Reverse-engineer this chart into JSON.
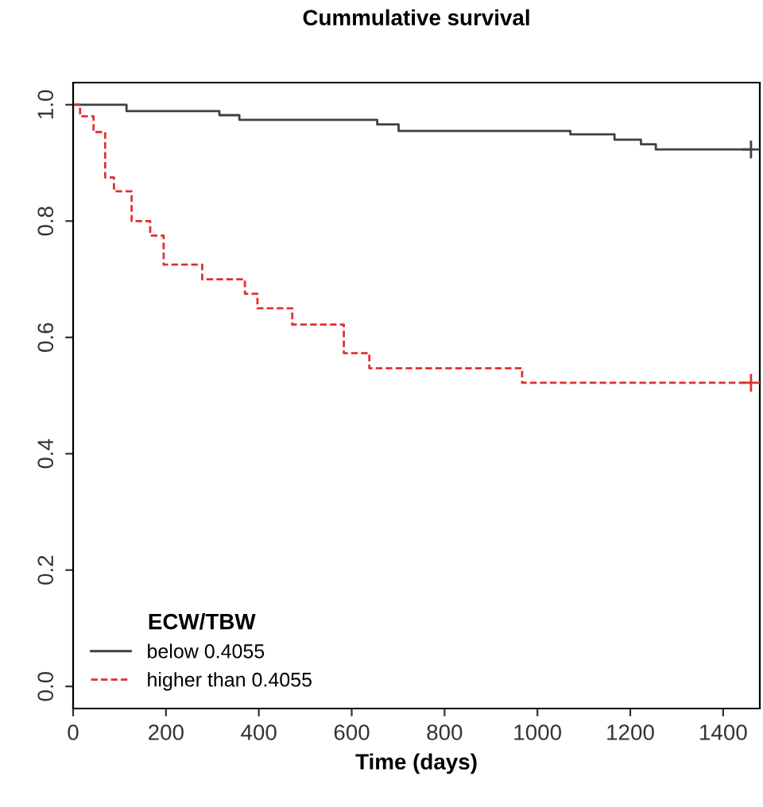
{
  "chart_data": {
    "type": "step",
    "title": "Cummulative survival",
    "xlabel": "Time (days)",
    "legend_title": "ECW/TBW",
    "legend": "bottom left",
    "grid": false,
    "xlim": [
      0,
      1479
    ],
    "ylim": [
      -0.038,
      1.038
    ],
    "xticks": [
      0,
      200,
      400,
      600,
      800,
      1000,
      1200,
      1400
    ],
    "yticks": [
      {
        "value": 0,
        "label": "0.0"
      },
      {
        "value": 0.2,
        "label": "0.2"
      },
      {
        "value": 0.4,
        "label": "0.4"
      },
      {
        "value": 0.6,
        "label": "0.6"
      },
      {
        "value": 0.8,
        "label": "0.8"
      },
      {
        "value": 1,
        "label": "1.0"
      }
    ],
    "series": [
      {
        "name": "below 0.4055",
        "color": "#404040",
        "line_style": "solid",
        "x": [
          0,
          115,
          315,
          358,
          655,
          701,
          1071,
          1166,
          1223,
          1255,
          1460
        ],
        "values": [
          1.0,
          0.989,
          0.982,
          0.974,
          0.966,
          0.955,
          0.949,
          0.94,
          0.932,
          0.923,
          0.923
        ]
      },
      {
        "name": "higher than 0.4055",
        "color": "#e03030",
        "line_style": "dashed",
        "x": [
          0,
          15,
          44,
          69,
          88,
          126,
          166,
          195,
          278,
          370,
          397,
          472,
          583,
          638,
          967,
          1460
        ],
        "values": [
          1.0,
          0.98,
          0.953,
          0.875,
          0.851,
          0.8,
          0.775,
          0.725,
          0.7,
          0.675,
          0.65,
          0.622,
          0.573,
          0.547,
          0.522,
          0.522
        ]
      },
      {
        "type": "scatter",
        "marker": "cross",
        "color": "#404040",
        "x": [
          1460
        ],
        "values": [
          0.923
        ]
      },
      {
        "type": "scatter",
        "marker": "cross",
        "color": "#e03030",
        "x": [
          1460
        ],
        "values": [
          0.522
        ]
      }
    ]
  }
}
